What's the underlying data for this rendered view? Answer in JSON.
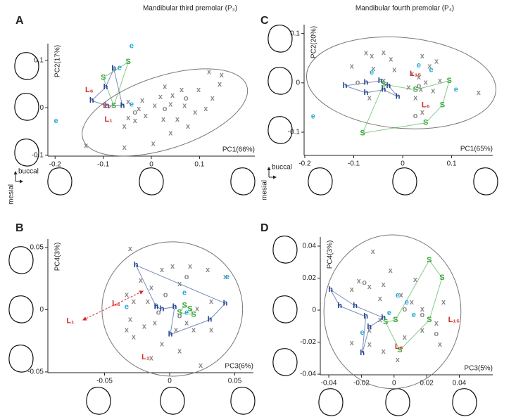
{
  "chart_data": [
    {
      "type": "scatter",
      "panel": "A",
      "title": "Mandibular third premolar (P₃)",
      "x_label": "PC1(66%)",
      "y_label": "PC2(17%)",
      "orientation_labels": [
        "buccal",
        "mesial"
      ],
      "xlim": [
        -0.215,
        0.215
      ],
      "ylim": [
        -0.102,
        0.135
      ],
      "xticks": [
        -0.2,
        -0.1,
        0,
        0.1
      ],
      "yticks": [
        -0.1,
        0,
        0.1
      ],
      "ellipse": {
        "cx": 0.028,
        "cy": -0.01,
        "rx": 0.179,
        "ry": 0.0765,
        "angle": -18,
        "color": "#777777"
      },
      "series": [
        {
          "marker": "x",
          "color": "#888888",
          "x": [
            0.12,
            0.146,
            0.142,
            0.028,
            0.063,
            0.019,
            0.044,
            -0.019,
            0.007,
            -0.026,
            -0.012,
            -0.048,
            -0.034,
            -0.056,
            0.04,
            0.069,
            0.091,
            0.127,
            0.113,
            0.054,
            0.076,
            0.025,
            0.004,
            -0.056,
            -0.136,
            -0.048,
            0.04,
            0.098
          ],
          "y": [
            0.075,
            0.068,
            0.049,
            0.044,
            0.037,
            0.022,
            0.025,
            0.015,
            0.004,
            -0.003,
            -0.018,
            -0.022,
            -0.028,
            -0.04,
            0.007,
            0.004,
            -0.01,
            0.019,
            -0.003,
            -0.025,
            -0.04,
            -0.025,
            -0.076,
            -0.084,
            -0.081,
            0.012,
            -0.054,
            0.037
          ]
        },
        {
          "marker": "o",
          "color": "#888888",
          "x": [
            0.028,
            0.072,
            -0.034
          ],
          "y": [
            -0.003,
            0.019,
            -0.01
          ]
        },
        {
          "marker": "e",
          "color": "#2aa8d8",
          "x": [
            -0.041,
            -0.066,
            -0.198,
            -0.041
          ],
          "y": [
            0.13,
            0.084,
            -0.028,
            0.007
          ]
        },
        {
          "marker": "h",
          "color": "#1f3f8f",
          "hull": true,
          "x": [
            -0.078,
            -0.06,
            -0.092,
            -0.124,
            -0.095
          ],
          "y": [
            0.082,
            0.004,
            0.004,
            0.015,
            0.043
          ]
        },
        {
          "marker": "S",
          "color": "#3aa63a",
          "hull": true,
          "x": [
            -0.048,
            -0.1,
            -0.078
          ],
          "y": [
            0.096,
            0.063,
            0.004
          ]
        },
        {
          "marker": "L₆",
          "color": "#d42a2a",
          "x": [
            -0.129
          ],
          "y": [
            0.037
          ]
        },
        {
          "marker": "L₂",
          "color": "#d42a2a",
          "x": [
            -0.092
          ],
          "y": [
            0.004
          ]
        },
        {
          "marker": "L₁",
          "color": "#d42a2a",
          "x": [
            -0.089
          ],
          "y": [
            -0.025
          ]
        }
      ]
    },
    {
      "type": "scatter",
      "panel": "C",
      "title": "Mandibular fourth premolar (P₄)",
      "x_label": "PC1(65%)",
      "y_label": "PC2(20%)",
      "orientation_labels": [
        "buccal",
        "mesial"
      ],
      "xlim": [
        -0.2014,
        0.184
      ],
      "ylim": [
        -0.147,
        0.118
      ],
      "xticks": [
        -0.2,
        -0.1,
        0,
        0.1
      ],
      "yticks": [
        -0.1,
        0,
        0.1
      ],
      "ellipse": {
        "cx": -0.003,
        "cy": 0,
        "rx": 0.194,
        "ry": 0.092,
        "angle": 5,
        "color": "#777777"
      },
      "series": [
        {
          "marker": "x",
          "color": "#888888",
          "x": [
            -0.075,
            -0.063,
            -0.039,
            -0.024,
            0.04,
            0.055,
            0.069,
            -0.104,
            -0.06,
            -0.017,
            0.019,
            0.033,
            0.047,
            0.012,
            0.026,
            0.04,
            0.155,
            0.076,
            0.062,
            -0.039,
            -0.068,
            0.037
          ],
          "y": [
            0.06,
            0.054,
            0.061,
            0.047,
            0.054,
            0.033,
            0.043,
            0.033,
            0.028,
            0.026,
            0.018,
            0.011,
            0,
            -0.01,
            -0.031,
            -0.06,
            -0.02,
            0.004,
            -0.017,
            0.004,
            -0.031,
            -0.014
          ]
        },
        {
          "marker": "o",
          "color": "#888888",
          "x": [
            -0.092,
            0.026,
            0.033
          ],
          "y": [
            0,
            -0.067,
            -0.007
          ]
        },
        {
          "marker": "e",
          "color": "#2aa8d8",
          "x": [
            -0.183,
            -0.063,
            0.033,
            0.058,
            0.109
          ],
          "y": [
            -0.068,
            0.021,
            0.035,
            0.026,
            -0.014
          ]
        },
        {
          "marker": "h",
          "color": "#1f3f8f",
          "hull": true,
          "x": [
            -0.118,
            -0.075,
            -0.046,
            -0.029,
            -0.01,
            -0.039,
            -0.075
          ],
          "y": [
            -0.006,
            0,
            0.004,
            -0.006,
            -0.028,
            -0.014,
            -0.02
          ]
        },
        {
          "marker": "S",
          "color": "#3aa63a",
          "hull": true,
          "x": [
            -0.082,
            -0.039,
            0.026,
            0.095,
            0.081,
            0.047
          ],
          "y": [
            -0.102,
            -0.003,
            -0.014,
            0.004,
            -0.045,
            -0.081
          ]
        },
        {
          "marker": "L₁₅",
          "color": "#d42a2a",
          "x": [
            0.026
          ],
          "y": [
            0.018
          ]
        },
        {
          "marker": "L₆",
          "color": "#d42a2a",
          "x": [
            0.047
          ],
          "y": [
            -0.045
          ]
        }
      ]
    },
    {
      "type": "scatter",
      "panel": "B",
      "x_label": "PC3(6%)",
      "y_label": "PC4(3%)",
      "xlim": [
        -0.0935,
        0.0643
      ],
      "ylim": [
        -0.0506,
        0.0568
      ],
      "xticks": [
        -0.05,
        0,
        0.05
      ],
      "yticks": [
        -0.05,
        0,
        0.05
      ],
      "ellipse": {
        "cx": 0.002,
        "cy": 0.0006,
        "rx": 0.054,
        "ry": 0.054,
        "angle": 0,
        "color": "#777777"
      },
      "series": [
        {
          "marker": "x",
          "color": "#888888",
          "x": [
            -0.0303,
            -0.0059,
            0.0022,
            0.0157,
            0.0292,
            -0.0222,
            -0.0141,
            0.0076,
            -0.033,
            -0.0276,
            -0.0168,
            0.0211,
            0.0319,
            -0.0303,
            -0.0195,
            -0.0114,
            0.0049,
            0.013,
            0.0184,
            0.0319,
            -0.0276,
            -0.0059,
            0.0076,
            -0.0141,
            0.0238,
            0.0427,
            -0.033
          ],
          "y": [
            0.0489,
            0.0318,
            0.0347,
            0.0347,
            0.0318,
            0.0233,
            0.0176,
            0.0205,
            0.0119,
            0.0063,
            0.0063,
            0.0006,
            0.0063,
            -0.008,
            -0.0136,
            -0.0108,
            -0.0165,
            -0.0108,
            -0.0165,
            -0.0165,
            -0.0222,
            -0.0278,
            -0.0335,
            -0.0392,
            -0.0449,
            0.0261,
            -0.0165
          ]
        },
        {
          "marker": "o",
          "color": "#888888",
          "x": [
            0.013,
            -0.0032,
            0.0076,
            -0.0086
          ],
          "y": [
            0.0261,
            0.0119,
            -0.0051,
            -0.0023
          ]
        },
        {
          "marker": "e",
          "color": "#2aa8d8",
          "x": [
            0.0443,
            -0.033,
            0.0114,
            -0.0103,
            0.013
          ],
          "y": [
            0.0261,
            0.0023,
            0.0136,
            0.0034,
            -0.0023
          ]
        },
        {
          "marker": "h",
          "color": "#1f3f8f",
          "hull": true,
          "x": [
            -0.0259,
            0.0427,
            0.0308,
            0.0005,
            0.0038,
            -0.0059,
            -0.0103
          ],
          "y": [
            0.0358,
            0.0051,
            -0.008,
            -0.0199,
            0.0023,
            0.0006,
            0.0023
          ]
        },
        {
          "marker": "S",
          "color": "#3aa63a",
          "hull": true,
          "x": [
            0.0114,
            0.0157,
            0.0184,
            0.0076
          ],
          "y": [
            0.0034,
            0.0006,
            -0.004,
            -0.0023
          ]
        },
        {
          "marker": "L₆",
          "color": "#d42a2a",
          "x": [
            -0.0411
          ],
          "y": [
            0.0051
          ]
        },
        {
          "marker": "L₁",
          "color": "#d42a2a",
          "x": [
            -0.0762
          ],
          "y": [
            -0.0091
          ]
        },
        {
          "marker": "L₂",
          "color": "#d42a2a",
          "x": [
            -0.0184
          ],
          "y": [
            -0.0381
          ]
        }
      ]
    },
    {
      "type": "scatter",
      "panel": "D",
      "x_label": "PC3(5%)",
      "y_label": "PC4(3%)",
      "xlim": [
        -0.0452,
        0.0605
      ],
      "ylim": [
        -0.0404,
        0.0457
      ],
      "xticks": [
        -0.04,
        -0.02,
        0,
        0.02,
        0.04
      ],
      "yticks": [
        -0.04,
        -0.02,
        0,
        0.02,
        0.04
      ],
      "ellipse": {
        "cx": -0.001,
        "cy": -0.001,
        "rx": 0.042,
        "ry": 0.048,
        "angle": 0,
        "color": "#777777"
      },
      "series": [
        {
          "marker": "x",
          "color": "#888888",
          "x": [
            -0.013,
            -0.0022,
            -0.0216,
            -0.0151,
            -0.0065,
            -0.0259,
            0.013,
            -0.0086,
            0.0043,
            0.0108,
            0.0173,
            0.0259,
            -0.0086,
            -0.0151,
            -0.0259,
            -0.0151,
            -0.0065,
            0.0022,
            0.0065,
            0.0173,
            0.0281,
            0.0303
          ],
          "y": [
            0.0365,
            0.0246,
            0.018,
            0.0145,
            0.0158,
            0.0127,
            0.0189,
            0.007,
            0.0092,
            0.0048,
            0.0004,
            -0.0084,
            -0.0062,
            -0.0127,
            -0.0207,
            -0.0215,
            -0.0259,
            -0.0312,
            -0.0171,
            -0.0127,
            -0.0215,
            0.0048
          ]
        },
        {
          "marker": "o",
          "color": "#888888",
          "x": [
            -0.0182,
            0.0065,
            0.0173,
            0.0259
          ],
          "y": [
            0.0171,
            0.0004,
            -0.0031,
            -0.0149
          ]
        },
        {
          "marker": "e",
          "color": "#2aa8d8",
          "x": [
            -0.003,
            -0.0195,
            0.0078,
            0.0121,
            0.0022
          ],
          "y": [
            -0.0018,
            -0.0141,
            0.0048,
            -0.0031,
            0.0092
          ]
        },
        {
          "marker": "h",
          "color": "#1f3f8f",
          "hull": true,
          "x": [
            -0.0389,
            -0.0238,
            -0.0065,
            -0.0151,
            -0.0195,
            -0.0173,
            -0.0333
          ],
          "y": [
            0.0127,
            0.0026,
            -0.0048,
            -0.0105,
            -0.0268,
            -0.004,
            0.0026
          ]
        },
        {
          "marker": "S",
          "color": "#3aa63a",
          "hull": true,
          "x": [
            0.0216,
            0.0294,
            0.0216,
            0.0035,
            -0.0052,
            0.0009
          ],
          "y": [
            0.0312,
            0.0202,
            -0.0062,
            -0.0251,
            -0.0075,
            -0.0062
          ]
        },
        {
          "marker": "L₆",
          "color": "#d42a2a",
          "x": [
            0.003
          ],
          "y": [
            -0.0229
          ]
        },
        {
          "marker": "L₁₅",
          "color": "#d42a2a",
          "x": [
            0.0367
          ],
          "y": [
            -0.0062
          ]
        }
      ]
    }
  ]
}
